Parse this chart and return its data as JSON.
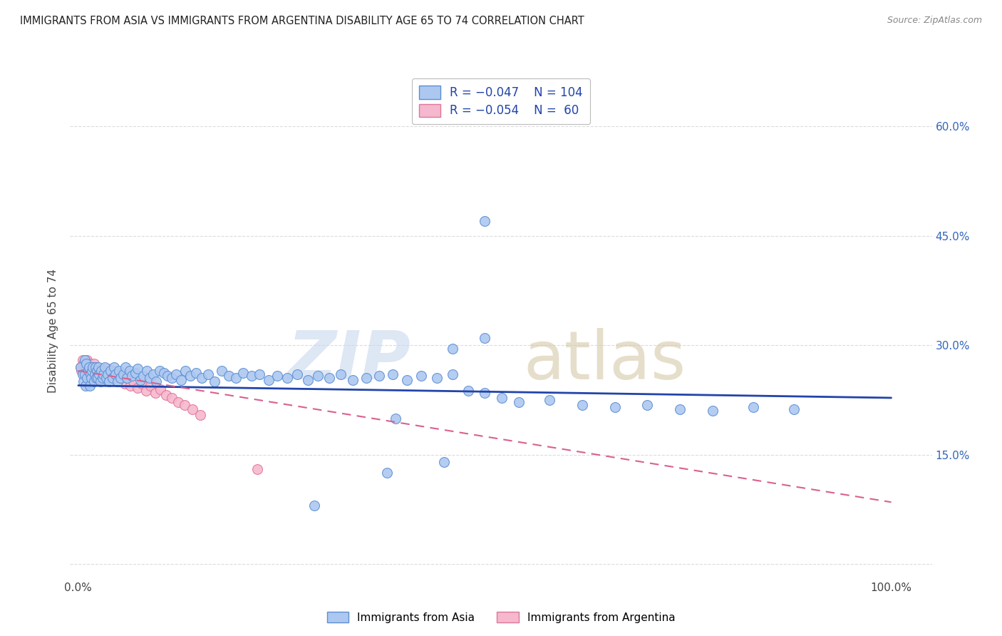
{
  "title": "IMMIGRANTS FROM ASIA VS IMMIGRANTS FROM ARGENTINA DISABILITY AGE 65 TO 74 CORRELATION CHART",
  "source": "Source: ZipAtlas.com",
  "ylabel": "Disability Age 65 to 74",
  "r_asia": -0.047,
  "n_asia": 104,
  "r_argentina": -0.054,
  "n_argentina": 60,
  "xlim": [
    -0.01,
    1.05
  ],
  "ylim": [
    -0.02,
    0.66
  ],
  "background_color": "#ffffff",
  "grid_color": "#cccccc",
  "asia_color": "#adc8f0",
  "asia_edge_color": "#5b8fd4",
  "argentina_color": "#f5b8ce",
  "argentina_edge_color": "#e0769a",
  "asia_line_color": "#2244aa",
  "argentina_line_color": "#d96090",
  "legend_label_asia": "Immigrants from Asia",
  "legend_label_argentina": "Immigrants from Argentina",
  "y_ticks": [
    0.0,
    0.15,
    0.3,
    0.45,
    0.6
  ],
  "y_tick_labels_right": [
    "",
    "15.0%",
    "30.0%",
    "45.0%",
    "60.0%"
  ],
  "x_ticks": [
    0.0,
    0.2,
    0.4,
    0.6,
    0.8,
    1.0
  ],
  "x_tick_labels": [
    "0.0%",
    "",
    "",
    "",
    "",
    "100.0%"
  ],
  "asia_trend_x0": 0.0,
  "asia_trend_y0": 0.245,
  "asia_trend_x1": 1.0,
  "asia_trend_y1": 0.228,
  "arg_trend_x0": 0.0,
  "arg_trend_y0": 0.265,
  "arg_trend_x1": 1.0,
  "arg_trend_y1": 0.085,
  "asia_scatter_x": [
    0.003,
    0.005,
    0.006,
    0.008,
    0.008,
    0.009,
    0.01,
    0.011,
    0.012,
    0.013,
    0.014,
    0.015,
    0.016,
    0.017,
    0.018,
    0.019,
    0.02,
    0.021,
    0.022,
    0.023,
    0.024,
    0.025,
    0.026,
    0.027,
    0.028,
    0.03,
    0.031,
    0.033,
    0.034,
    0.036,
    0.038,
    0.04,
    0.042,
    0.044,
    0.046,
    0.048,
    0.05,
    0.052,
    0.055,
    0.058,
    0.06,
    0.063,
    0.066,
    0.07,
    0.073,
    0.076,
    0.08,
    0.084,
    0.088,
    0.092,
    0.096,
    0.1,
    0.105,
    0.11,
    0.115,
    0.12,
    0.126,
    0.132,
    0.138,
    0.145,
    0.152,
    0.16,
    0.168,
    0.176,
    0.185,
    0.194,
    0.203,
    0.213,
    0.223,
    0.234,
    0.245,
    0.257,
    0.269,
    0.282,
    0.295,
    0.309,
    0.323,
    0.338,
    0.354,
    0.37,
    0.387,
    0.404,
    0.422,
    0.441,
    0.46,
    0.48,
    0.5,
    0.521,
    0.542,
    0.5,
    0.58,
    0.62,
    0.66,
    0.7,
    0.74,
    0.78,
    0.83,
    0.88,
    0.5,
    0.46,
    0.38,
    0.29,
    0.39,
    0.45
  ],
  "asia_scatter_y": [
    0.27,
    0.26,
    0.25,
    0.28,
    0.26,
    0.245,
    0.275,
    0.255,
    0.265,
    0.27,
    0.245,
    0.26,
    0.255,
    0.265,
    0.27,
    0.25,
    0.26,
    0.27,
    0.255,
    0.265,
    0.255,
    0.27,
    0.26,
    0.25,
    0.265,
    0.255,
    0.26,
    0.27,
    0.255,
    0.26,
    0.25,
    0.265,
    0.255,
    0.27,
    0.26,
    0.25,
    0.265,
    0.255,
    0.26,
    0.27,
    0.255,
    0.265,
    0.258,
    0.262,
    0.268,
    0.252,
    0.258,
    0.265,
    0.255,
    0.26,
    0.25,
    0.265,
    0.262,
    0.258,
    0.255,
    0.26,
    0.252,
    0.265,
    0.258,
    0.262,
    0.255,
    0.26,
    0.25,
    0.265,
    0.258,
    0.255,
    0.262,
    0.258,
    0.26,
    0.252,
    0.258,
    0.255,
    0.26,
    0.252,
    0.258,
    0.255,
    0.26,
    0.252,
    0.255,
    0.258,
    0.26,
    0.252,
    0.258,
    0.255,
    0.26,
    0.238,
    0.235,
    0.228,
    0.222,
    0.31,
    0.225,
    0.218,
    0.215,
    0.218,
    0.212,
    0.21,
    0.215,
    0.212,
    0.47,
    0.295,
    0.125,
    0.08,
    0.2,
    0.14
  ],
  "argentina_scatter_x": [
    0.003,
    0.004,
    0.005,
    0.006,
    0.007,
    0.008,
    0.008,
    0.009,
    0.01,
    0.01,
    0.011,
    0.012,
    0.012,
    0.013,
    0.014,
    0.015,
    0.015,
    0.016,
    0.017,
    0.018,
    0.019,
    0.02,
    0.021,
    0.022,
    0.023,
    0.024,
    0.025,
    0.026,
    0.027,
    0.028,
    0.029,
    0.03,
    0.031,
    0.032,
    0.034,
    0.036,
    0.038,
    0.04,
    0.042,
    0.045,
    0.048,
    0.05,
    0.053,
    0.057,
    0.06,
    0.064,
    0.068,
    0.073,
    0.078,
    0.083,
    0.089,
    0.095,
    0.101,
    0.108,
    0.115,
    0.123,
    0.131,
    0.14,
    0.15,
    0.22
  ],
  "argentina_scatter_y": [
    0.27,
    0.265,
    0.28,
    0.275,
    0.26,
    0.265,
    0.27,
    0.275,
    0.265,
    0.26,
    0.28,
    0.27,
    0.265,
    0.26,
    0.275,
    0.265,
    0.27,
    0.26,
    0.265,
    0.27,
    0.275,
    0.268,
    0.262,
    0.27,
    0.26,
    0.265,
    0.255,
    0.262,
    0.268,
    0.255,
    0.265,
    0.26,
    0.268,
    0.255,
    0.262,
    0.268,
    0.255,
    0.26,
    0.265,
    0.255,
    0.262,
    0.255,
    0.26,
    0.248,
    0.255,
    0.245,
    0.25,
    0.242,
    0.248,
    0.238,
    0.245,
    0.235,
    0.24,
    0.232,
    0.228,
    0.222,
    0.218,
    0.212,
    0.205,
    0.13
  ]
}
